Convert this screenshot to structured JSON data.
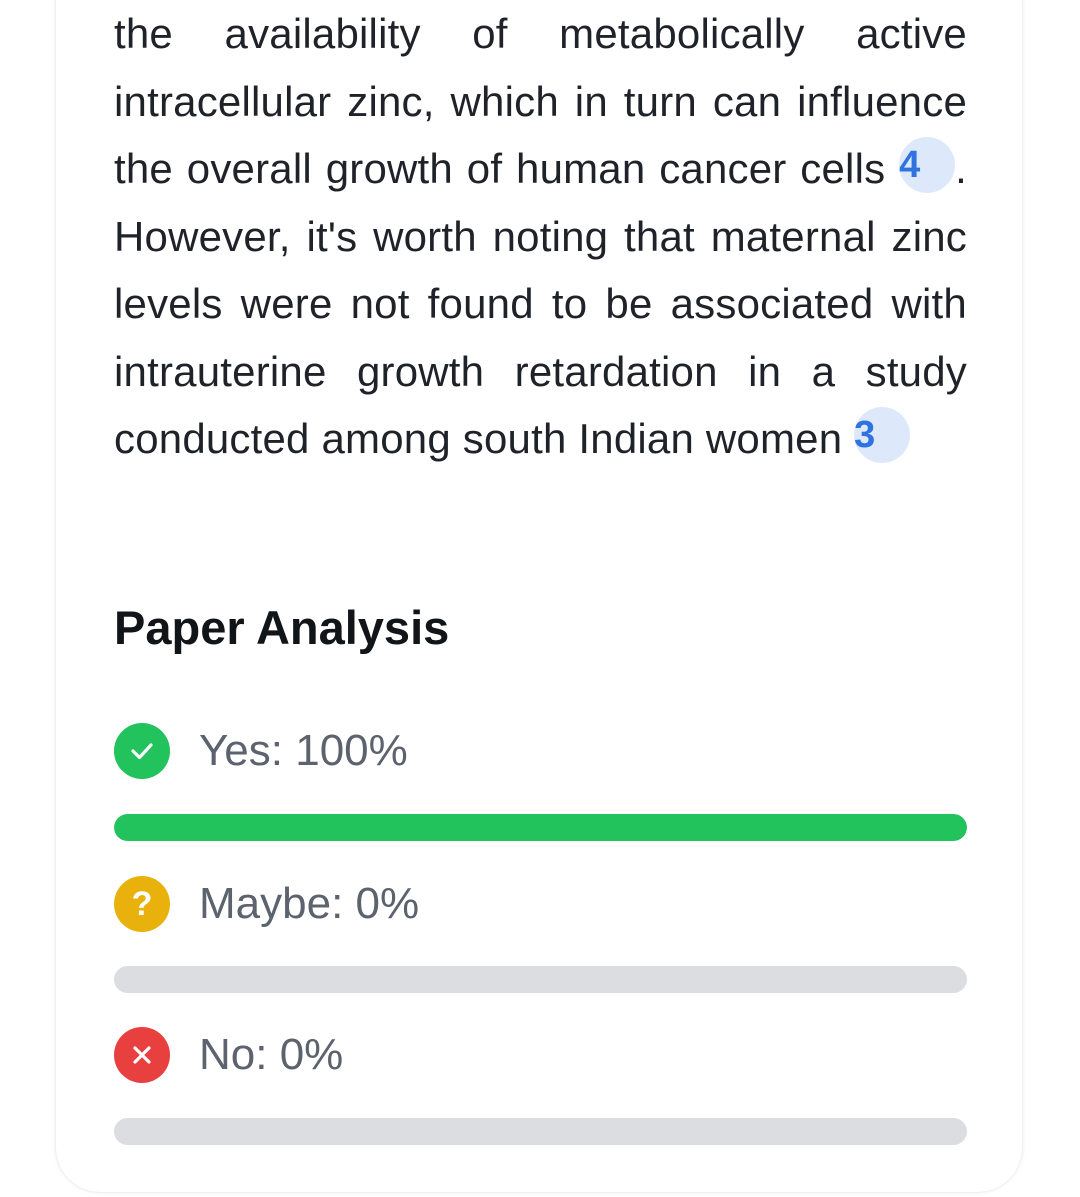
{
  "paragraph": {
    "seg1": "the availability of metabolically active intracellular zinc, which in turn can influence the overall growth of human cancer cells ",
    "cite1": "4",
    "seg2": ". However, it's worth noting that maternal zinc levels were not found to be associated with intrauterine growth retardation in a study conducted among south Indian women ",
    "cite2": "3"
  },
  "analysis": {
    "title": "Paper Analysis",
    "items": [
      {
        "label": "Yes: 100%",
        "percent": 100,
        "color": "#22c25d",
        "icon": "check-icon"
      },
      {
        "label": "Maybe: 0%",
        "percent": 0,
        "color": "#e9b10c",
        "icon": "question-icon"
      },
      {
        "label": "No: 0%",
        "percent": 0,
        "color": "#e8403f",
        "icon": "close-icon"
      }
    ]
  },
  "colors": {
    "citation_bg": "#dde9fb",
    "citation_text": "#2f72e0",
    "track": "#dcdde1"
  }
}
